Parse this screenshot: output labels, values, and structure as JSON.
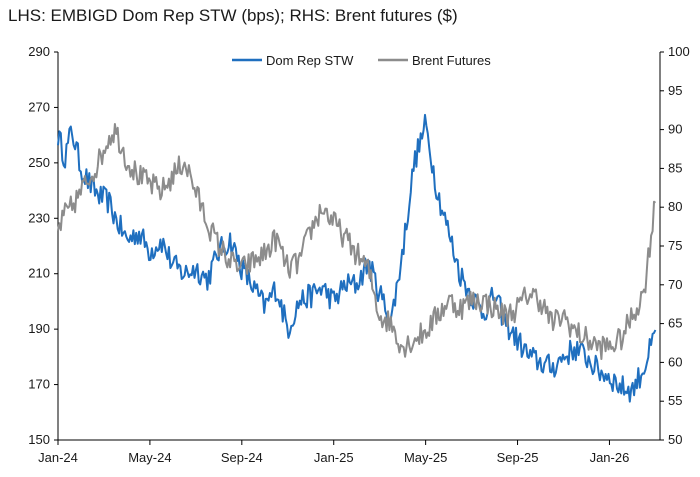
{
  "chart_data": {
    "type": "line",
    "title": "LHS: EMBIGD Dom Rep STW (bps); RHS: Brent futures ($)",
    "x_tick_labels": [
      "Jan-24",
      "May-24",
      "Sep-24",
      "Jan-25",
      "May-25",
      "Sep-25",
      "Jan-26"
    ],
    "x_start": "2024-01",
    "x_end": "2026-03",
    "left_axis": {
      "label": "EMBIGD Dom Rep STW (bps)",
      "min": 150,
      "max": 290,
      "ticks": [
        150,
        170,
        190,
        210,
        230,
        250,
        270,
        290
      ]
    },
    "right_axis": {
      "label": "Brent futures ($)",
      "min": 50,
      "max": 100,
      "ticks": [
        50,
        55,
        60,
        65,
        70,
        75,
        80,
        85,
        90,
        95,
        100
      ]
    },
    "legend": {
      "position": "top-center"
    },
    "series": [
      {
        "name": "Dom Rep STW",
        "axis": "left",
        "color": "#1f6fbf",
        "t": [
          0,
          0.3,
          0.6,
          1,
          1.4,
          1.8,
          2.2,
          2.5,
          3,
          3.5,
          4,
          4.5,
          5,
          5.5,
          6,
          6.5,
          7,
          7.5,
          8,
          8.5,
          9,
          9.5,
          10,
          10.5,
          11,
          11.5,
          12,
          12.5,
          13,
          13.5,
          14,
          14.5,
          15,
          15.5,
          16,
          16.5,
          17,
          17.5,
          18,
          18.5,
          19,
          19.5,
          20,
          20.5,
          21,
          21.5,
          22,
          22.5,
          23,
          23.5,
          24,
          24.5,
          25,
          25.5,
          26
        ],
        "values": [
          260,
          252,
          262,
          248,
          242,
          238,
          236,
          230,
          222,
          225,
          218,
          222,
          213,
          210,
          212,
          208,
          218,
          222,
          212,
          205,
          198,
          205,
          190,
          200,
          202,
          205,
          200,
          206,
          206,
          214,
          203,
          193,
          218,
          250,
          264,
          240,
          225,
          210,
          202,
          196,
          202,
          192,
          186,
          180,
          178,
          176,
          180,
          183,
          180,
          175,
          173,
          169,
          168,
          176,
          188
        ]
      },
      {
        "name": "Brent Futures",
        "axis": "right",
        "color": "#8c8c8c",
        "t": [
          0,
          0.3,
          0.6,
          1,
          1.4,
          1.8,
          2.2,
          2.5,
          3,
          3.5,
          4,
          4.5,
          5,
          5.5,
          6,
          6.5,
          7,
          7.5,
          8,
          8.5,
          9,
          9.5,
          10,
          10.5,
          11,
          11.5,
          12,
          12.5,
          13,
          13.5,
          14,
          14.5,
          15,
          15.5,
          16,
          16.5,
          17,
          17.5,
          18,
          18.5,
          19,
          19.5,
          20,
          20.5,
          21,
          21.5,
          22,
          22.5,
          23,
          23.5,
          24,
          24.5,
          25,
          25.5,
          26
        ],
        "values": [
          77,
          79,
          80,
          82,
          84,
          86,
          89,
          90,
          86,
          84,
          83,
          82,
          84,
          86,
          82,
          78,
          75,
          73,
          72,
          73,
          74,
          76,
          72,
          73,
          77,
          80,
          78,
          76,
          74,
          72,
          66,
          65,
          62,
          63,
          64,
          66,
          68,
          67,
          68,
          68,
          67,
          66,
          67,
          69,
          68,
          65,
          66,
          64,
          63,
          62,
          62,
          63,
          66,
          69,
          81
        ]
      }
    ]
  }
}
